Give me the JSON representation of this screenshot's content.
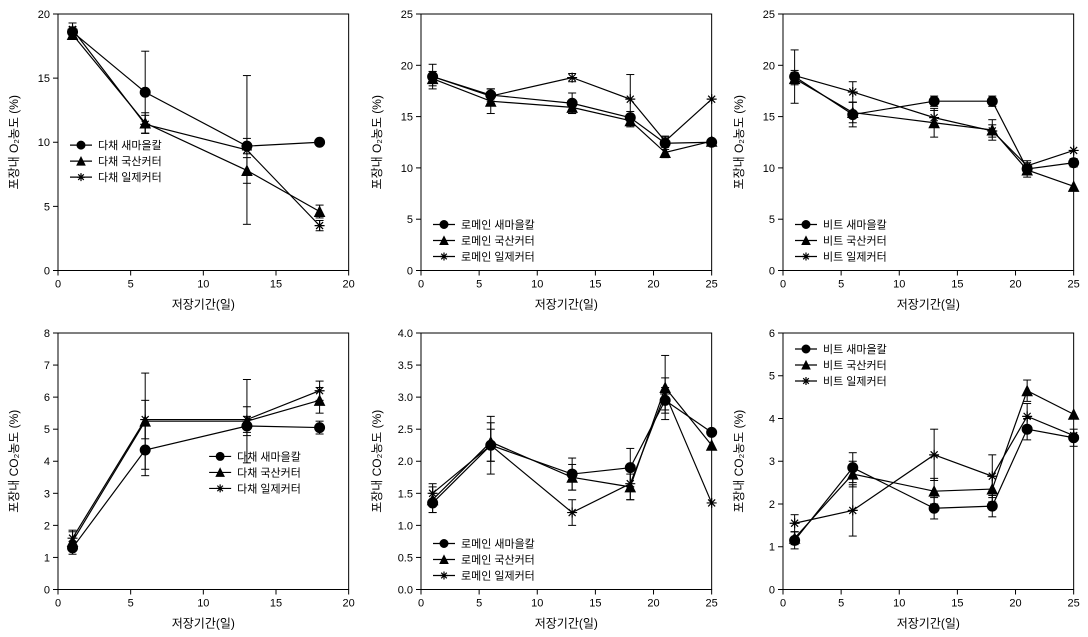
{
  "global": {
    "xlabel": "저장기간(일)",
    "ylabel_top": "포장내 O₂농도 (%)",
    "ylabel_bottom": "포장내 CO₂농도 (%)",
    "line_color": "#000000",
    "point_fill": "#000000",
    "background_color": "#ffffff",
    "grid_color": "#ffffff",
    "axis_color": "#000000",
    "font_family": "Arial",
    "tick_fontsize": 11,
    "label_fontsize": 12,
    "marker_size": 5,
    "line_width": 1.2,
    "errorbar_cap": 4
  },
  "panels": [
    {
      "id": "top-left",
      "type": "line-errorbar",
      "legend_pos": "inside-left-mid",
      "xlim": [
        0,
        20
      ],
      "xtick_step": 5,
      "ylim": [
        0,
        20
      ],
      "ytick_step": 5,
      "ylabel_key": "top",
      "series": [
        {
          "name": "다채 새마을칼",
          "marker": "circle",
          "x": [
            1,
            6,
            13,
            18
          ],
          "y": [
            18.6,
            13.9,
            9.7,
            10.0
          ],
          "err": [
            0.4,
            3.2,
            0.6,
            0
          ]
        },
        {
          "name": "다채 국산커터",
          "marker": "triangle",
          "x": [
            1,
            6,
            13,
            18
          ],
          "y": [
            18.4,
            11.5,
            7.8,
            4.6
          ],
          "err": [
            0.3,
            0.8,
            1.0,
            0.5
          ]
        },
        {
          "name": "다채 일제커터",
          "marker": "star",
          "x": [
            1,
            6,
            13,
            18
          ],
          "y": [
            18.8,
            11.4,
            9.4,
            3.5
          ],
          "err": [
            0.5,
            0.7,
            5.8,
            0.4
          ]
        }
      ]
    },
    {
      "id": "top-mid",
      "type": "line-errorbar",
      "legend_pos": "inside-left-bottom",
      "xlim": [
        0,
        25
      ],
      "xtick_step": 5,
      "ylim": [
        0,
        25
      ],
      "ytick_step": 5,
      "ylabel_key": "top",
      "series": [
        {
          "name": "로메인 새마을칼",
          "marker": "circle",
          "x": [
            1,
            6,
            13,
            18,
            21,
            25
          ],
          "y": [
            18.9,
            17.1,
            16.3,
            14.9,
            12.4,
            12.5
          ],
          "err": [
            1.2,
            0.6,
            1.0,
            0.6,
            0.6,
            0
          ]
        },
        {
          "name": "로메인 국산커터",
          "marker": "triangle",
          "x": [
            1,
            6,
            13,
            18,
            21,
            25
          ],
          "y": [
            18.7,
            16.5,
            15.9,
            14.6,
            11.5,
            12.6
          ],
          "err": [
            0.7,
            1.2,
            0.6,
            0.6,
            0.5,
            0
          ]
        },
        {
          "name": "로메인 일제커터",
          "marker": "star",
          "x": [
            1,
            6,
            13,
            18,
            21,
            25
          ],
          "y": [
            18.9,
            17.0,
            18.8,
            16.7,
            12.6,
            16.7
          ],
          "err": [
            0.5,
            0.7,
            0.4,
            2.4,
            0.5,
            0
          ]
        }
      ]
    },
    {
      "id": "top-right",
      "type": "line-errorbar",
      "legend_pos": "inside-left-bottom",
      "xlim": [
        0,
        25
      ],
      "xtick_step": 5,
      "ylim": [
        0,
        25
      ],
      "ytick_step": 5,
      "ylabel_key": "top",
      "series": [
        {
          "name": "비트 새마을칼",
          "marker": "circle",
          "x": [
            1,
            6,
            13,
            18,
            21,
            25
          ],
          "y": [
            18.9,
            15.2,
            16.5,
            16.5,
            9.9,
            10.5
          ],
          "err": [
            2.6,
            1.2,
            0.5,
            0.5,
            0.4,
            0.4
          ]
        },
        {
          "name": "비트 국산커터",
          "marker": "triangle",
          "x": [
            1,
            6,
            13,
            18,
            21,
            25
          ],
          "y": [
            18.7,
            15.4,
            14.4,
            13.7,
            9.8,
            8.2
          ],
          "err": [
            0.6,
            1.0,
            1.4,
            1.0,
            0.7,
            0
          ]
        },
        {
          "name": "비트 일제커터",
          "marker": "star",
          "x": [
            1,
            6,
            13,
            18,
            21,
            25
          ],
          "y": [
            19.0,
            17.4,
            14.9,
            13.6,
            10.2,
            11.7
          ],
          "err": [
            0.5,
            1.0,
            0.7,
            0.6,
            0.5,
            0
          ]
        }
      ]
    },
    {
      "id": "bot-left",
      "type": "line-errorbar",
      "legend_pos": "inside-right-mid",
      "xlim": [
        0,
        20
      ],
      "xtick_step": 5,
      "ylim": [
        0,
        8
      ],
      "ytick_step": 1,
      "ylabel_key": "bottom",
      "series": [
        {
          "name": "다채 새마을칼",
          "marker": "circle",
          "x": [
            1,
            6,
            13,
            18
          ],
          "y": [
            1.3,
            4.35,
            5.1,
            5.05
          ],
          "err": [
            0.2,
            0.8,
            0.3,
            0.2
          ]
        },
        {
          "name": "다채 국산커터",
          "marker": "triangle",
          "x": [
            1,
            6,
            13,
            18
          ],
          "y": [
            1.5,
            5.25,
            5.25,
            5.9
          ],
          "err": [
            0.3,
            1.5,
            1.3,
            0.4
          ]
        },
        {
          "name": "다채 일제커터",
          "marker": "star",
          "x": [
            1,
            6,
            13,
            18
          ],
          "y": [
            1.6,
            5.3,
            5.3,
            6.2
          ],
          "err": [
            0.25,
            0.6,
            0.4,
            0.3
          ]
        }
      ]
    },
    {
      "id": "bot-mid",
      "type": "line-errorbar",
      "legend_pos": "inside-left-bottom",
      "xlim": [
        0,
        25
      ],
      "xtick_step": 5,
      "ylim": [
        0,
        4.0
      ],
      "ytick_step": 0.5,
      "ylabel_key": "bottom",
      "series": [
        {
          "name": "로메인 새마을칼",
          "marker": "circle",
          "x": [
            1,
            6,
            13,
            18,
            21,
            25
          ],
          "y": [
            1.35,
            2.25,
            1.8,
            1.9,
            2.95,
            2.45
          ],
          "err": [
            0.15,
            0.45,
            0.25,
            0.3,
            0.2,
            0
          ]
        },
        {
          "name": "로메인 국산커터",
          "marker": "triangle",
          "x": [
            1,
            6,
            13,
            18,
            21,
            25
          ],
          "y": [
            1.4,
            2.3,
            1.75,
            1.6,
            3.15,
            2.25
          ],
          "err": [
            0.2,
            0.3,
            0.2,
            0.2,
            0.5,
            0
          ]
        },
        {
          "name": "로메인 일제커터",
          "marker": "star",
          "x": [
            1,
            6,
            13,
            18,
            21,
            25
          ],
          "y": [
            1.5,
            2.25,
            1.2,
            1.65,
            3.05,
            1.35
          ],
          "err": [
            0.15,
            0.25,
            0.2,
            0.25,
            0.25,
            0
          ]
        }
      ]
    },
    {
      "id": "bot-right",
      "type": "line-errorbar",
      "legend_pos": "inside-left-top",
      "xlim": [
        0,
        25
      ],
      "xtick_step": 5,
      "ylim": [
        0,
        6
      ],
      "ytick_step": 1,
      "ylabel_key": "bottom",
      "series": [
        {
          "name": "비트 새마을칼",
          "marker": "circle",
          "x": [
            1,
            6,
            13,
            18,
            21,
            25
          ],
          "y": [
            1.15,
            2.85,
            1.9,
            1.95,
            3.75,
            3.55
          ],
          "err": [
            0.2,
            0.35,
            0.25,
            0.25,
            0.25,
            0.2
          ]
        },
        {
          "name": "비트 국산커터",
          "marker": "triangle",
          "x": [
            1,
            6,
            13,
            18,
            21,
            25
          ],
          "y": [
            1.2,
            2.7,
            2.3,
            2.35,
            4.65,
            4.1
          ],
          "err": [
            0.15,
            0.3,
            0.3,
            0.3,
            0.25,
            0
          ]
        },
        {
          "name": "비트 일제커터",
          "marker": "star",
          "x": [
            1,
            6,
            13,
            18,
            21,
            25
          ],
          "y": [
            1.55,
            1.85,
            3.15,
            2.65,
            4.05,
            3.6
          ],
          "err": [
            0.2,
            0.6,
            0.6,
            0.5,
            0.3,
            0
          ]
        }
      ]
    }
  ]
}
